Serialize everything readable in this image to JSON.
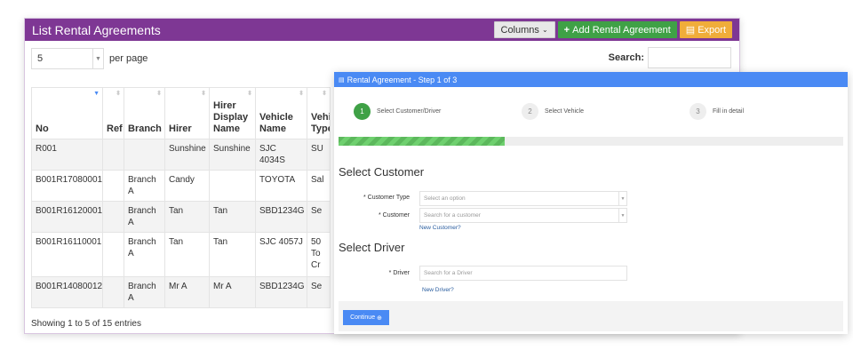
{
  "panel": {
    "title": "List Rental Agreements",
    "columns_label": "Columns",
    "add_label": "Add Rental Agreement",
    "export_label": "Export",
    "per_page_value": "5",
    "per_page_label": "per page",
    "search_label": "Search:",
    "footer": "Showing 1 to 5 of 15 entries"
  },
  "table": {
    "headers": [
      "No",
      "Ref",
      "Branch",
      "Hirer",
      "Hirer Display Name",
      "Vehicle Name",
      "Vehicle Type"
    ],
    "rows": [
      [
        "R001",
        "",
        "",
        "Sunshine",
        "Sunshine",
        "SJC 4034S",
        "SU"
      ],
      [
        "B001R17080001",
        "",
        "Branch A",
        "Candy",
        "",
        "TOYOTA",
        "Sal"
      ],
      [
        "B001R16120001",
        "",
        "Branch A",
        "Tan",
        "Tan",
        "SBD1234G",
        "Se"
      ],
      [
        "B001R16110001",
        "",
        "Branch A",
        "Tan",
        "Tan",
        "SJC 4057J",
        "50 To Cr"
      ],
      [
        "B001R14080012",
        "",
        "Branch A",
        "Mr A",
        "Mr A",
        "SBD1234G",
        "Se"
      ]
    ]
  },
  "modal": {
    "title": "Rental Agreement - Step 1 of 3",
    "steps": [
      {
        "num": "1",
        "label": "Select Customer/Driver"
      },
      {
        "num": "2",
        "label": "Select Vehicle"
      },
      {
        "num": "3",
        "label": "Fill in detail"
      }
    ],
    "progress_percent": 33,
    "customer_heading": "Select Customer",
    "customer_type_label": "* Customer Type",
    "customer_type_placeholder": "Select an option",
    "customer_label": "* Customer",
    "customer_placeholder": "Search for a customer",
    "new_customer": "New Customer?",
    "driver_heading": "Select Driver",
    "driver_label": "* Driver",
    "driver_placeholder": "Search for a Driver",
    "new_driver": "New Driver?",
    "continue_label": "Continue"
  },
  "colors": {
    "header": "#7e3794",
    "modal_header": "#4a8af4",
    "add": "#3fa146",
    "export": "#f0ad3a"
  }
}
